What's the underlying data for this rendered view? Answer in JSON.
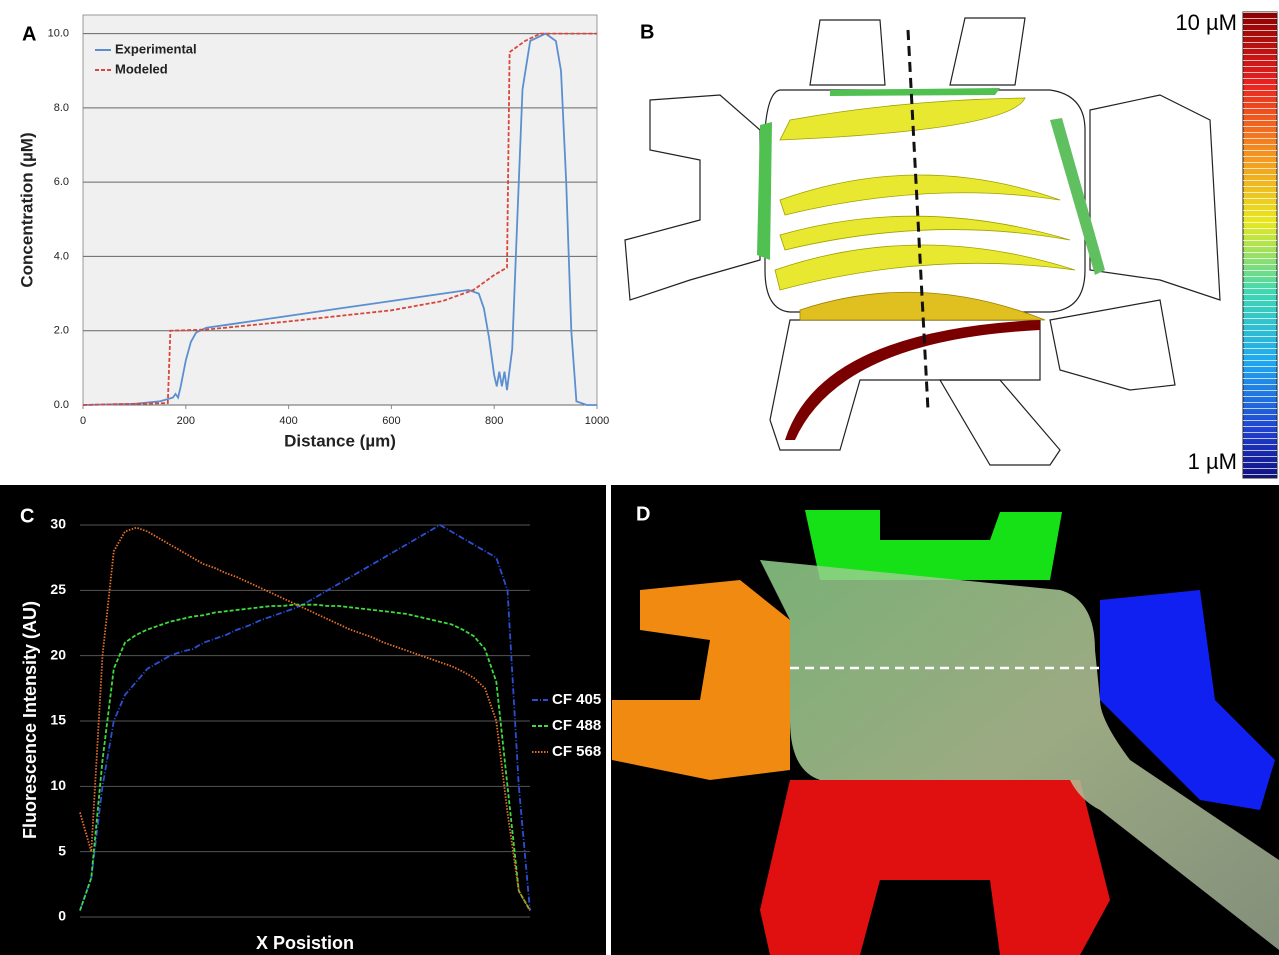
{
  "chart_data": [
    {
      "type": "line",
      "panel_label": "A",
      "x_label": "Distance (µm)",
      "y_label": "Concentration (µM)",
      "xlim": [
        0,
        1000
      ],
      "xticks": [
        0,
        200,
        400,
        600,
        800,
        1000
      ],
      "ylim": [
        0,
        10.5
      ],
      "yticks": [
        {
          "value": 0,
          "label": "0.0"
        },
        {
          "value": 2,
          "label": "2.0"
        },
        {
          "value": 4,
          "label": "4.0"
        },
        {
          "value": 6,
          "label": "6.0"
        },
        {
          "value": 8,
          "label": "8.0"
        },
        {
          "value": 10,
          "label": "10.0"
        }
      ],
      "grid": true,
      "legend": "upper left",
      "series": [
        {
          "name": "Experimental",
          "color": "#5b8fd0",
          "style": "solid",
          "x": [
            0,
            60,
            100,
            150,
            175,
            180,
            185,
            190,
            200,
            210,
            220,
            240,
            300,
            400,
            500,
            600,
            700,
            750,
            770,
            780,
            790,
            800,
            805,
            810,
            815,
            820,
            825,
            835,
            845,
            855,
            870,
            900,
            920,
            930,
            940,
            950,
            960,
            980,
            1000
          ],
          "values": [
            0,
            0.02,
            0.03,
            0.1,
            0.2,
            0.3,
            0.2,
            0.5,
            1.2,
            1.7,
            1.95,
            2.08,
            2.2,
            2.4,
            2.6,
            2.8,
            3.0,
            3.1,
            3.0,
            2.6,
            1.8,
            0.8,
            0.5,
            0.9,
            0.5,
            0.9,
            0.4,
            1.5,
            5,
            8.5,
            9.8,
            10,
            9.8,
            9,
            6,
            2,
            0.1,
            0,
            0
          ]
        },
        {
          "name": "Modeled",
          "color": "#d9463b",
          "style": "dashed",
          "x": [
            0,
            165,
            170,
            240,
            400,
            600,
            700,
            760,
            800,
            825,
            830,
            860,
            890,
            1000
          ],
          "values": [
            0,
            0.05,
            2,
            2.03,
            2.25,
            2.55,
            2.8,
            3.1,
            3.5,
            3.7,
            9.5,
            9.8,
            10,
            10
          ]
        }
      ]
    },
    {
      "type": "line",
      "panel_label": "C",
      "x_label": "X Posistion",
      "y_label": "Fluorescence Intensity (AU)",
      "xlim": [
        0,
        40
      ],
      "x": [
        0,
        1,
        2,
        3,
        4,
        5,
        6,
        7,
        8,
        9,
        10,
        11,
        12,
        13,
        14,
        15,
        16,
        17,
        18,
        19,
        20,
        21,
        22,
        23,
        24,
        25,
        26,
        27,
        28,
        29,
        30,
        31,
        32,
        33,
        34,
        35,
        36,
        37,
        38,
        39,
        40
      ],
      "ylim": [
        0,
        30
      ],
      "yticks": [
        0,
        5,
        10,
        15,
        20,
        25,
        30
      ],
      "grid": true,
      "legend": "right",
      "series": [
        {
          "name": "CF 405",
          "color": "#2a4fd6",
          "style": "dashdot",
          "values": [
            0.5,
            3,
            10,
            15,
            17,
            18,
            19,
            19.5,
            20,
            20.3,
            20.5,
            21,
            21.3,
            21.6,
            22,
            22.3,
            22.7,
            23,
            23.3,
            23.6,
            24,
            24.5,
            25,
            25.5,
            26,
            26.5,
            27,
            27.5,
            28,
            28.5,
            29,
            29.5,
            30,
            29.5,
            29,
            28.5,
            28,
            27.5,
            25,
            10,
            0.5
          ]
        },
        {
          "name": "CF 488",
          "color": "#3ddc3d",
          "style": "dashed",
          "values": [
            0.5,
            3,
            12,
            19,
            21,
            21.6,
            22,
            22.3,
            22.6,
            22.8,
            23,
            23.1,
            23.3,
            23.4,
            23.5,
            23.6,
            23.7,
            23.8,
            23.8,
            23.9,
            23.9,
            23.9,
            23.8,
            23.8,
            23.7,
            23.6,
            23.5,
            23.4,
            23.3,
            23.2,
            23,
            22.8,
            22.6,
            22.4,
            22,
            21.5,
            20.5,
            18,
            10,
            2,
            0.5
          ]
        },
        {
          "name": "CF 568",
          "color": "#e8702a",
          "style": "dotted",
          "values": [
            8,
            5,
            20,
            28,
            29.5,
            29.8,
            29.5,
            29,
            28.5,
            28,
            27.5,
            27,
            26.7,
            26.3,
            26,
            25.6,
            25.2,
            24.8,
            24.4,
            24,
            23.6,
            23.2,
            22.8,
            22.4,
            22,
            21.7,
            21.4,
            21,
            20.7,
            20.4,
            20.1,
            19.8,
            19.5,
            19.2,
            18.8,
            18.3,
            17.5,
            15,
            8,
            2,
            0.5
          ]
        }
      ]
    }
  ],
  "panel_b": {
    "label": "B",
    "scale_max": "10 µM",
    "scale_min": "1 µM"
  },
  "panel_d": {
    "label": "D"
  }
}
